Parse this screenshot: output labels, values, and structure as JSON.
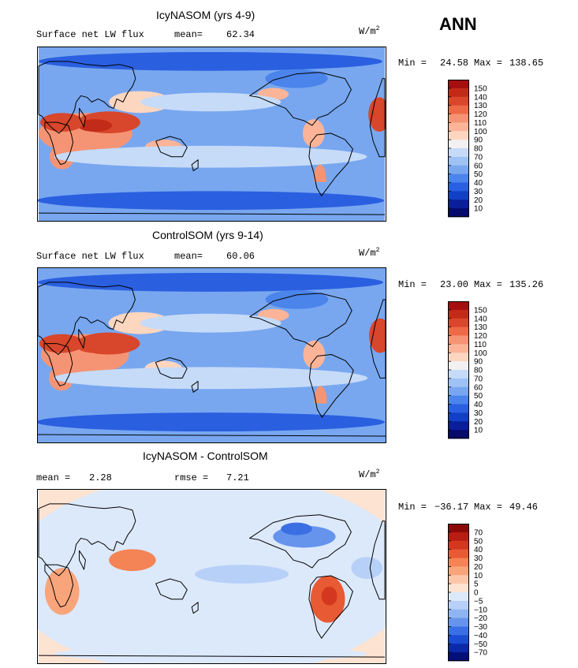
{
  "header": {
    "season_label": "ANN",
    "units_label": "W/m",
    "units_exponent": "2"
  },
  "chart_data": [
    {
      "type": "heatmap",
      "title": "IcyNASOM (yrs 4-9)",
      "variable": "Surface net LW flux",
      "stat_label": "mean=",
      "stat_value": "62.34",
      "min_label": "Min =",
      "min_value": "24.58",
      "max_label": "Max =",
      "max_value": "138.65",
      "levels": [
        150,
        140,
        130,
        120,
        110,
        100,
        90,
        80,
        70,
        60,
        50,
        40,
        30,
        20,
        10
      ],
      "level_labels": [
        "150",
        "140",
        "130",
        "120",
        "110",
        "100",
        "90",
        "80",
        "70",
        "60",
        "50",
        "40",
        "30",
        "20",
        "10"
      ],
      "colors": [
        "#a40f0f",
        "#c22b18",
        "#d8462b",
        "#ec6a45",
        "#f59474",
        "#fbb497",
        "#fdd6c0",
        "#f2f0f0",
        "#c6dbf8",
        "#9fc2f5",
        "#78a7f0",
        "#4b84ea",
        "#2a5fe0",
        "#1240c4",
        "#0a1f97",
        "#050a6b"
      ]
    },
    {
      "type": "heatmap",
      "title": "ControlSOM (yrs 9-14)",
      "variable": "Surface net LW flux",
      "stat_label": "mean=",
      "stat_value": "60.06",
      "min_label": "Min =",
      "min_value": "23.00",
      "max_label": "Max =",
      "max_value": "135.26",
      "levels": [
        150,
        140,
        130,
        120,
        110,
        100,
        90,
        80,
        70,
        60,
        50,
        40,
        30,
        20,
        10
      ],
      "level_labels": [
        "150",
        "140",
        "130",
        "120",
        "110",
        "100",
        "90",
        "80",
        "70",
        "60",
        "50",
        "40",
        "30",
        "20",
        "10"
      ],
      "colors": [
        "#a40f0f",
        "#c22b18",
        "#d8462b",
        "#ec6a45",
        "#f59474",
        "#fbb497",
        "#fdd6c0",
        "#f2f0f0",
        "#c6dbf8",
        "#9fc2f5",
        "#78a7f0",
        "#4b84ea",
        "#2a5fe0",
        "#1240c4",
        "#0a1f97",
        "#050a6b"
      ]
    },
    {
      "type": "heatmap",
      "title": "IcyNASOM - ControlSOM",
      "stat_label": "mean =",
      "stat_value": "2.28",
      "rmse_label": "rmse =",
      "rmse_value": "7.21",
      "min_label": "Min =",
      "min_value": "−36.17",
      "max_label": "Max =",
      "max_value": "49.46",
      "levels": [
        70,
        50,
        40,
        30,
        20,
        10,
        5,
        0,
        -5,
        -10,
        -20,
        -30,
        -40,
        -50,
        -70
      ],
      "level_labels": [
        "70",
        "50",
        "40",
        "30",
        "20",
        "10",
        "5",
        "0",
        "−5",
        "−10",
        "−20",
        "−30",
        "−40",
        "−50",
        "−70"
      ],
      "colors": [
        "#8a0a0a",
        "#b71d12",
        "#d3381f",
        "#e85a33",
        "#f48356",
        "#f9a57b",
        "#fcc7a9",
        "#fde3d2",
        "#dce9fb",
        "#b7d0f7",
        "#8fb4f2",
        "#6694ec",
        "#3a6fe4",
        "#1a4dd2",
        "#0b2aa7",
        "#050f78"
      ]
    }
  ]
}
